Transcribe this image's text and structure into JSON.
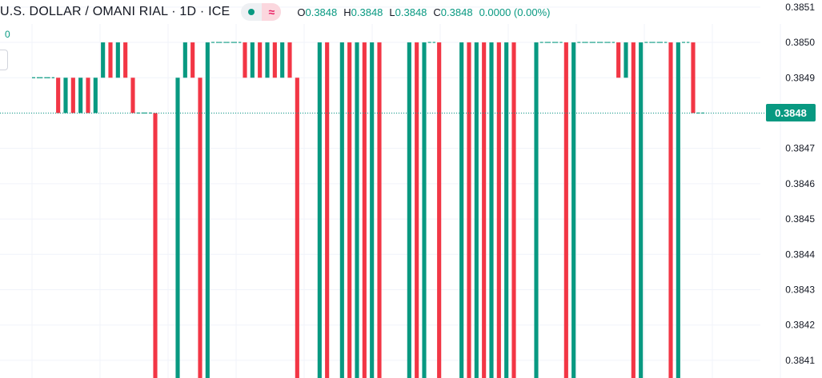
{
  "header": {
    "title": "U.S. DOLLAR / OMANI RIAL · 1D · ICE",
    "delayed_glyph": "≈",
    "ohlc": {
      "o_label": "O",
      "o_value": "0.3848",
      "h_label": "H",
      "h_value": "0.3848",
      "l_label": "L",
      "l_value": "0.3848",
      "c_label": "C",
      "c_value": "0.3848",
      "change": "0.0000 (0.00%)"
    }
  },
  "left_label": "0",
  "colors": {
    "up": "#089981",
    "down": "#F23645",
    "grid": "#f0f3fa",
    "axis_text": "#131722",
    "status_dot": "#089981",
    "delayed_bg": "#fbd7de",
    "delayed_fg": "#e91e63"
  },
  "icons": {
    "status": "market-status-dot-icon",
    "delayed": "delayed-data-icon"
  },
  "chart_data": {
    "type": "ohlc",
    "ylim": [
      0.38405,
      0.38512
    ],
    "y_ticks": [
      "0.3851",
      "0.3850",
      "0.3849",
      "0.3848",
      "0.3847",
      "0.3846",
      "0.3845",
      "0.3844",
      "0.3843",
      "0.3842",
      "0.3841"
    ],
    "last_price": "0.3848",
    "bars": [
      {
        "open": 0.3849,
        "high": 0.3849,
        "low": 0.3849,
        "close": 0.3849,
        "dir": "up"
      },
      {
        "open": 0.3849,
        "high": 0.3849,
        "low": 0.3849,
        "close": 0.3849,
        "dir": "up"
      },
      {
        "open": 0.3849,
        "high": 0.3849,
        "low": 0.3849,
        "close": 0.3849,
        "dir": "up"
      },
      {
        "open": 0.3849,
        "high": 0.3849,
        "low": 0.3848,
        "close": 0.3848,
        "dir": "down"
      },
      {
        "open": 0.3848,
        "high": 0.3849,
        "low": 0.3848,
        "close": 0.3849,
        "dir": "up"
      },
      {
        "open": 0.3849,
        "high": 0.3849,
        "low": 0.3848,
        "close": 0.3848,
        "dir": "down"
      },
      {
        "open": 0.3848,
        "high": 0.3849,
        "low": 0.3848,
        "close": 0.3849,
        "dir": "up"
      },
      {
        "open": 0.3849,
        "high": 0.3849,
        "low": 0.3848,
        "close": 0.3848,
        "dir": "down"
      },
      {
        "open": 0.3848,
        "high": 0.3849,
        "low": 0.3848,
        "close": 0.3849,
        "dir": "up"
      },
      {
        "open": 0.3849,
        "high": 0.385,
        "low": 0.3849,
        "close": 0.385,
        "dir": "up"
      },
      {
        "open": 0.385,
        "high": 0.385,
        "low": 0.3849,
        "close": 0.3849,
        "dir": "down"
      },
      {
        "open": 0.3849,
        "high": 0.385,
        "low": 0.3849,
        "close": 0.385,
        "dir": "up"
      },
      {
        "open": 0.385,
        "high": 0.385,
        "low": 0.3849,
        "close": 0.3849,
        "dir": "down"
      },
      {
        "open": 0.3849,
        "high": 0.3849,
        "low": 0.3848,
        "close": 0.3848,
        "dir": "down"
      },
      {
        "open": 0.3848,
        "high": 0.3848,
        "low": 0.3848,
        "close": 0.3848,
        "dir": "up"
      },
      {
        "open": 0.3848,
        "high": 0.3848,
        "low": 0.3848,
        "close": 0.3848,
        "dir": "up"
      },
      {
        "open": 0.3848,
        "high": 0.3848,
        "low": 0.384,
        "close": 0.384,
        "dir": "down"
      },
      {
        "open": 0.384,
        "high": 0.384,
        "low": 0.384,
        "close": 0.384,
        "dir": "up"
      },
      {
        "open": 0.384,
        "high": 0.384,
        "low": 0.384,
        "close": 0.384,
        "dir": "up"
      },
      {
        "open": 0.384,
        "high": 0.3849,
        "low": 0.384,
        "close": 0.3849,
        "dir": "up"
      },
      {
        "open": 0.3849,
        "high": 0.385,
        "low": 0.3849,
        "close": 0.385,
        "dir": "up"
      },
      {
        "open": 0.385,
        "high": 0.385,
        "low": 0.3849,
        "close": 0.3849,
        "dir": "down"
      },
      {
        "open": 0.3849,
        "high": 0.3849,
        "low": 0.384,
        "close": 0.384,
        "dir": "down"
      },
      {
        "open": 0.384,
        "high": 0.385,
        "low": 0.384,
        "close": 0.385,
        "dir": "up"
      },
      {
        "open": 0.385,
        "high": 0.385,
        "low": 0.385,
        "close": 0.385,
        "dir": "up"
      },
      {
        "open": 0.385,
        "high": 0.385,
        "low": 0.385,
        "close": 0.385,
        "dir": "up"
      },
      {
        "open": 0.385,
        "high": 0.385,
        "low": 0.385,
        "close": 0.385,
        "dir": "up"
      },
      {
        "open": 0.385,
        "high": 0.385,
        "low": 0.385,
        "close": 0.385,
        "dir": "up"
      },
      {
        "open": 0.385,
        "high": 0.385,
        "low": 0.3849,
        "close": 0.3849,
        "dir": "down"
      },
      {
        "open": 0.3849,
        "high": 0.385,
        "low": 0.3849,
        "close": 0.385,
        "dir": "up"
      },
      {
        "open": 0.385,
        "high": 0.385,
        "low": 0.3849,
        "close": 0.3849,
        "dir": "down"
      },
      {
        "open": 0.3849,
        "high": 0.385,
        "low": 0.3849,
        "close": 0.385,
        "dir": "up"
      },
      {
        "open": 0.385,
        "high": 0.385,
        "low": 0.3849,
        "close": 0.3849,
        "dir": "down"
      },
      {
        "open": 0.3849,
        "high": 0.385,
        "low": 0.3849,
        "close": 0.385,
        "dir": "up"
      },
      {
        "open": 0.385,
        "high": 0.385,
        "low": 0.3849,
        "close": 0.3849,
        "dir": "down"
      },
      {
        "open": 0.3849,
        "high": 0.3849,
        "low": 0.384,
        "close": 0.384,
        "dir": "down"
      },
      {
        "open": 0.384,
        "high": 0.384,
        "low": 0.384,
        "close": 0.384,
        "dir": "up"
      },
      {
        "open": 0.384,
        "high": 0.384,
        "low": 0.384,
        "close": 0.384,
        "dir": "up"
      },
      {
        "open": 0.384,
        "high": 0.385,
        "low": 0.384,
        "close": 0.385,
        "dir": "up"
      },
      {
        "open": 0.385,
        "high": 0.385,
        "low": 0.384,
        "close": 0.384,
        "dir": "down"
      },
      {
        "open": 0.384,
        "high": 0.384,
        "low": 0.384,
        "close": 0.384,
        "dir": "up"
      },
      {
        "open": 0.384,
        "high": 0.385,
        "low": 0.384,
        "close": 0.385,
        "dir": "up"
      },
      {
        "open": 0.385,
        "high": 0.385,
        "low": 0.384,
        "close": 0.384,
        "dir": "down"
      },
      {
        "open": 0.384,
        "high": 0.385,
        "low": 0.384,
        "close": 0.385,
        "dir": "up"
      },
      {
        "open": 0.385,
        "high": 0.385,
        "low": 0.384,
        "close": 0.384,
        "dir": "down"
      },
      {
        "open": 0.384,
        "high": 0.385,
        "low": 0.384,
        "close": 0.385,
        "dir": "up"
      },
      {
        "open": 0.385,
        "high": 0.385,
        "low": 0.384,
        "close": 0.384,
        "dir": "down"
      },
      {
        "open": 0.384,
        "high": 0.384,
        "low": 0.384,
        "close": 0.384,
        "dir": "up"
      },
      {
        "open": 0.384,
        "high": 0.384,
        "low": 0.384,
        "close": 0.384,
        "dir": "up"
      },
      {
        "open": 0.384,
        "high": 0.384,
        "low": 0.384,
        "close": 0.384,
        "dir": "up"
      },
      {
        "open": 0.384,
        "high": 0.385,
        "low": 0.384,
        "close": 0.385,
        "dir": "up"
      },
      {
        "open": 0.385,
        "high": 0.385,
        "low": 0.384,
        "close": 0.384,
        "dir": "down"
      },
      {
        "open": 0.384,
        "high": 0.385,
        "low": 0.384,
        "close": 0.385,
        "dir": "up"
      },
      {
        "open": 0.385,
        "high": 0.385,
        "low": 0.385,
        "close": 0.385,
        "dir": "up"
      },
      {
        "open": 0.385,
        "high": 0.385,
        "low": 0.384,
        "close": 0.384,
        "dir": "down"
      },
      {
        "open": 0.384,
        "high": 0.384,
        "low": 0.384,
        "close": 0.384,
        "dir": "up"
      },
      {
        "open": 0.384,
        "high": 0.384,
        "low": 0.384,
        "close": 0.384,
        "dir": "up"
      },
      {
        "open": 0.384,
        "high": 0.385,
        "low": 0.384,
        "close": 0.385,
        "dir": "up"
      },
      {
        "open": 0.385,
        "high": 0.385,
        "low": 0.384,
        "close": 0.384,
        "dir": "down"
      },
      {
        "open": 0.384,
        "high": 0.385,
        "low": 0.384,
        "close": 0.385,
        "dir": "up"
      },
      {
        "open": 0.385,
        "high": 0.385,
        "low": 0.384,
        "close": 0.384,
        "dir": "down"
      },
      {
        "open": 0.384,
        "high": 0.385,
        "low": 0.384,
        "close": 0.385,
        "dir": "up"
      },
      {
        "open": 0.385,
        "high": 0.385,
        "low": 0.384,
        "close": 0.384,
        "dir": "down"
      },
      {
        "open": 0.384,
        "high": 0.385,
        "low": 0.384,
        "close": 0.385,
        "dir": "up"
      },
      {
        "open": 0.385,
        "high": 0.385,
        "low": 0.384,
        "close": 0.384,
        "dir": "down"
      },
      {
        "open": 0.384,
        "high": 0.384,
        "low": 0.384,
        "close": 0.384,
        "dir": "up"
      },
      {
        "open": 0.384,
        "high": 0.384,
        "low": 0.384,
        "close": 0.384,
        "dir": "up"
      },
      {
        "open": 0.384,
        "high": 0.385,
        "low": 0.384,
        "close": 0.385,
        "dir": "up"
      },
      {
        "open": 0.385,
        "high": 0.385,
        "low": 0.385,
        "close": 0.385,
        "dir": "up"
      },
      {
        "open": 0.385,
        "high": 0.385,
        "low": 0.385,
        "close": 0.385,
        "dir": "up"
      },
      {
        "open": 0.385,
        "high": 0.385,
        "low": 0.385,
        "close": 0.385,
        "dir": "up"
      },
      {
        "open": 0.385,
        "high": 0.385,
        "low": 0.384,
        "close": 0.384,
        "dir": "down"
      },
      {
        "open": 0.384,
        "high": 0.385,
        "low": 0.384,
        "close": 0.385,
        "dir": "up"
      },
      {
        "open": 0.385,
        "high": 0.385,
        "low": 0.385,
        "close": 0.385,
        "dir": "up"
      },
      {
        "open": 0.385,
        "high": 0.385,
        "low": 0.385,
        "close": 0.385,
        "dir": "up"
      },
      {
        "open": 0.385,
        "high": 0.385,
        "low": 0.385,
        "close": 0.385,
        "dir": "up"
      },
      {
        "open": 0.385,
        "high": 0.385,
        "low": 0.385,
        "close": 0.385,
        "dir": "up"
      },
      {
        "open": 0.385,
        "high": 0.385,
        "low": 0.385,
        "close": 0.385,
        "dir": "up"
      },
      {
        "open": 0.385,
        "high": 0.385,
        "low": 0.3849,
        "close": 0.3849,
        "dir": "down"
      },
      {
        "open": 0.3849,
        "high": 0.385,
        "low": 0.3849,
        "close": 0.385,
        "dir": "up"
      },
      {
        "open": 0.385,
        "high": 0.385,
        "low": 0.384,
        "close": 0.384,
        "dir": "down"
      },
      {
        "open": 0.384,
        "high": 0.385,
        "low": 0.384,
        "close": 0.385,
        "dir": "up"
      },
      {
        "open": 0.385,
        "high": 0.385,
        "low": 0.385,
        "close": 0.385,
        "dir": "up"
      },
      {
        "open": 0.385,
        "high": 0.385,
        "low": 0.385,
        "close": 0.385,
        "dir": "up"
      },
      {
        "open": 0.385,
        "high": 0.385,
        "low": 0.385,
        "close": 0.385,
        "dir": "up"
      },
      {
        "open": 0.385,
        "high": 0.385,
        "low": 0.384,
        "close": 0.384,
        "dir": "down"
      },
      {
        "open": 0.384,
        "high": 0.385,
        "low": 0.384,
        "close": 0.385,
        "dir": "up"
      },
      {
        "open": 0.385,
        "high": 0.385,
        "low": 0.385,
        "close": 0.385,
        "dir": "up"
      },
      {
        "open": 0.385,
        "high": 0.385,
        "low": 0.3848,
        "close": 0.3848,
        "dir": "down"
      },
      {
        "open": 0.3848,
        "high": 0.3848,
        "low": 0.3848,
        "close": 0.3848,
        "dir": "up"
      }
    ]
  }
}
